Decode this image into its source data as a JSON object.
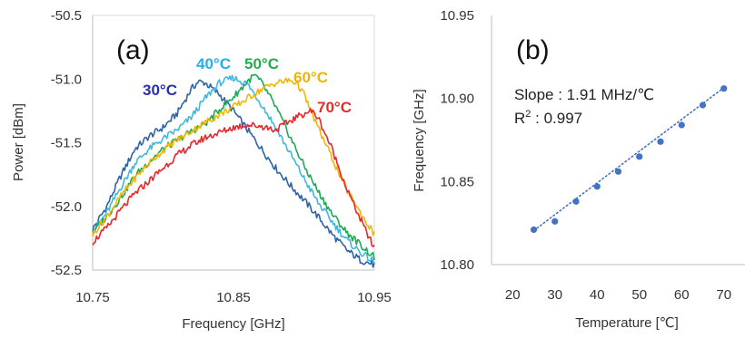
{
  "chart_data": [
    {
      "type": "line",
      "panel_label": "(a)",
      "xlabel": "Frequency [GHz]",
      "ylabel": "Power [dBm]",
      "xlim": [
        10.75,
        10.95
      ],
      "ylim": [
        -52.5,
        -50.5
      ],
      "xticks": [
        10.75,
        10.85,
        10.95
      ],
      "xtick_labels": [
        "10.75",
        "10.85",
        "10.95"
      ],
      "yticks": [
        -52.5,
        -52.0,
        -51.5,
        -51.0,
        -50.5
      ],
      "ytick_labels": [
        "-52.5",
        "-52.0",
        "-51.5",
        "-51.0",
        "-50.5"
      ],
      "grid": false,
      "series": [
        {
          "name": "30°C",
          "color": "#2E63A8",
          "label_color": "#2A2DB8",
          "x": [
            10.75,
            10.76,
            10.77,
            10.78,
            10.79,
            10.8,
            10.81,
            10.82,
            10.825,
            10.83,
            10.84,
            10.85,
            10.86,
            10.87,
            10.88,
            10.89,
            10.9,
            10.91,
            10.92,
            10.93,
            10.94,
            10.95
          ],
          "y": [
            -52.18,
            -52.0,
            -51.76,
            -51.55,
            -51.45,
            -51.38,
            -51.27,
            -51.08,
            -51.02,
            -51.03,
            -51.12,
            -51.25,
            -51.4,
            -51.55,
            -51.7,
            -51.83,
            -51.95,
            -52.08,
            -52.22,
            -52.34,
            -52.42,
            -52.46
          ]
        },
        {
          "name": "40°C",
          "color": "#3FB8E0",
          "label_color": "#22B0E8",
          "x": [
            10.75,
            10.76,
            10.77,
            10.78,
            10.79,
            10.8,
            10.81,
            10.82,
            10.83,
            10.84,
            10.85,
            10.86,
            10.87,
            10.88,
            10.89,
            10.9,
            10.91,
            10.92,
            10.93,
            10.94,
            10.95
          ],
          "y": [
            -52.2,
            -52.05,
            -51.85,
            -51.66,
            -51.55,
            -51.47,
            -51.4,
            -51.3,
            -51.15,
            -51.03,
            -50.99,
            -51.04,
            -51.2,
            -51.38,
            -51.58,
            -51.78,
            -51.97,
            -52.12,
            -52.26,
            -52.36,
            -52.44
          ]
        },
        {
          "name": "50°C",
          "color": "#1AAA55",
          "label_color": "#1FAE4E",
          "x": [
            10.75,
            10.76,
            10.77,
            10.78,
            10.79,
            10.8,
            10.81,
            10.82,
            10.83,
            10.84,
            10.85,
            10.86,
            10.865,
            10.87,
            10.88,
            10.89,
            10.9,
            10.91,
            10.92,
            10.93,
            10.94,
            10.95
          ],
          "y": [
            -52.2,
            -52.08,
            -51.93,
            -51.76,
            -51.65,
            -51.55,
            -51.48,
            -51.41,
            -51.35,
            -51.24,
            -51.14,
            -51.02,
            -50.97,
            -51.03,
            -51.22,
            -51.45,
            -51.68,
            -51.88,
            -52.06,
            -52.2,
            -52.3,
            -52.4
          ]
        },
        {
          "name": "60°C",
          "color": "#F2B600",
          "label_color": "#F0B400",
          "x": [
            10.75,
            10.76,
            10.77,
            10.78,
            10.79,
            10.8,
            10.81,
            10.82,
            10.83,
            10.84,
            10.85,
            10.86,
            10.87,
            10.88,
            10.89,
            10.895,
            10.9,
            10.91,
            10.92,
            10.93,
            10.94,
            10.95
          ],
          "y": [
            -52.22,
            -52.08,
            -51.92,
            -51.78,
            -51.66,
            -51.56,
            -51.48,
            -51.41,
            -51.34,
            -51.28,
            -51.22,
            -51.15,
            -51.08,
            -51.03,
            -51.01,
            -51.03,
            -51.12,
            -51.38,
            -51.62,
            -51.86,
            -52.05,
            -52.22
          ]
        },
        {
          "name": "70°C",
          "color": "#E8262B",
          "label_color": "#E52A2A",
          "x": [
            10.75,
            10.76,
            10.77,
            10.78,
            10.79,
            10.8,
            10.81,
            10.82,
            10.83,
            10.84,
            10.85,
            10.86,
            10.87,
            10.88,
            10.89,
            10.9,
            10.905,
            10.91,
            10.92,
            10.93,
            10.94,
            10.95
          ],
          "y": [
            -52.28,
            -52.17,
            -52.03,
            -51.9,
            -51.8,
            -51.7,
            -51.6,
            -51.52,
            -51.46,
            -51.42,
            -51.38,
            -51.36,
            -51.37,
            -51.4,
            -51.33,
            -51.27,
            -51.25,
            -51.3,
            -51.55,
            -51.85,
            -52.1,
            -52.33
          ]
        }
      ]
    },
    {
      "type": "scatter",
      "panel_label": "(b)",
      "xlabel": "Temperature [℃]",
      "ylabel": "Frequency [GHz]",
      "xlim": [
        15,
        75
      ],
      "ylim": [
        10.8,
        10.95
      ],
      "xticks": [
        20,
        30,
        40,
        50,
        60,
        70
      ],
      "xtick_labels": [
        "20",
        "30",
        "40",
        "50",
        "60",
        "70"
      ],
      "yticks": [
        10.8,
        10.85,
        10.9,
        10.95
      ],
      "ytick_labels": [
        "10.80",
        "10.85",
        "10.90",
        "10.95"
      ],
      "grid": false,
      "point_color": "#4472C4",
      "trendline": {
        "style": "dotted",
        "color": "#4472C4",
        "x": [
          25,
          70
        ],
        "y": [
          10.8205,
          10.9065
        ]
      },
      "annotations": {
        "slope": "Slope : 1.91 MHz/℃",
        "r2_main": "R",
        "r2_sup": "2",
        "r2_value": " : 0.997"
      },
      "series": [
        {
          "x": [
            25,
            30,
            35,
            40,
            45,
            50,
            55,
            60,
            65,
            70
          ],
          "y": [
            10.821,
            10.826,
            10.838,
            10.847,
            10.856,
            10.865,
            10.874,
            10.884,
            10.896,
            10.906
          ]
        }
      ]
    }
  ]
}
